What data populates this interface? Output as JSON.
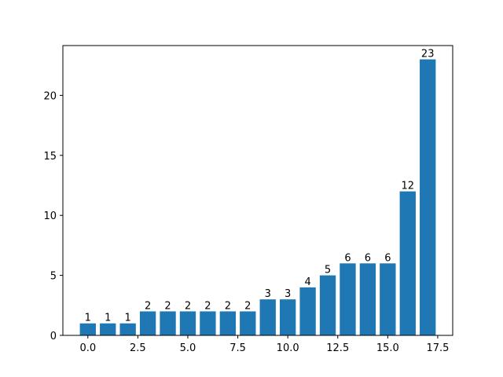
{
  "chart_data": {
    "type": "bar",
    "x": [
      0,
      1,
      2,
      3,
      4,
      5,
      6,
      7,
      8,
      9,
      10,
      11,
      12,
      13,
      14,
      15,
      16,
      17
    ],
    "values": [
      1,
      1,
      1,
      2,
      2,
      2,
      2,
      2,
      2,
      3,
      3,
      4,
      5,
      6,
      6,
      6,
      12,
      23
    ],
    "bar_labels": [
      "1",
      "1",
      "1",
      "2",
      "2",
      "2",
      "2",
      "2",
      "2",
      "3",
      "3",
      "4",
      "5",
      "6",
      "6",
      "6",
      "12",
      "23"
    ],
    "bar_width": 0.8,
    "xlim": [
      -1.25,
      18.25
    ],
    "ylim": [
      0,
      24.15
    ],
    "xticks": [
      0,
      2.5,
      5,
      7.5,
      10,
      12.5,
      15,
      17.5
    ],
    "xtick_labels": [
      "0.0",
      "2.5",
      "5.0",
      "7.5",
      "10.0",
      "12.5",
      "15.0",
      "17.5"
    ],
    "yticks": [
      0,
      5,
      10,
      15,
      20
    ],
    "ytick_labels": [
      "0",
      "5",
      "10",
      "15",
      "20"
    ],
    "title": "",
    "xlabel": "",
    "ylabel": "",
    "grid": false,
    "legend": "none",
    "colors": {
      "bar": "#1f77b4",
      "axes": "#000000",
      "text": "#000000"
    }
  }
}
